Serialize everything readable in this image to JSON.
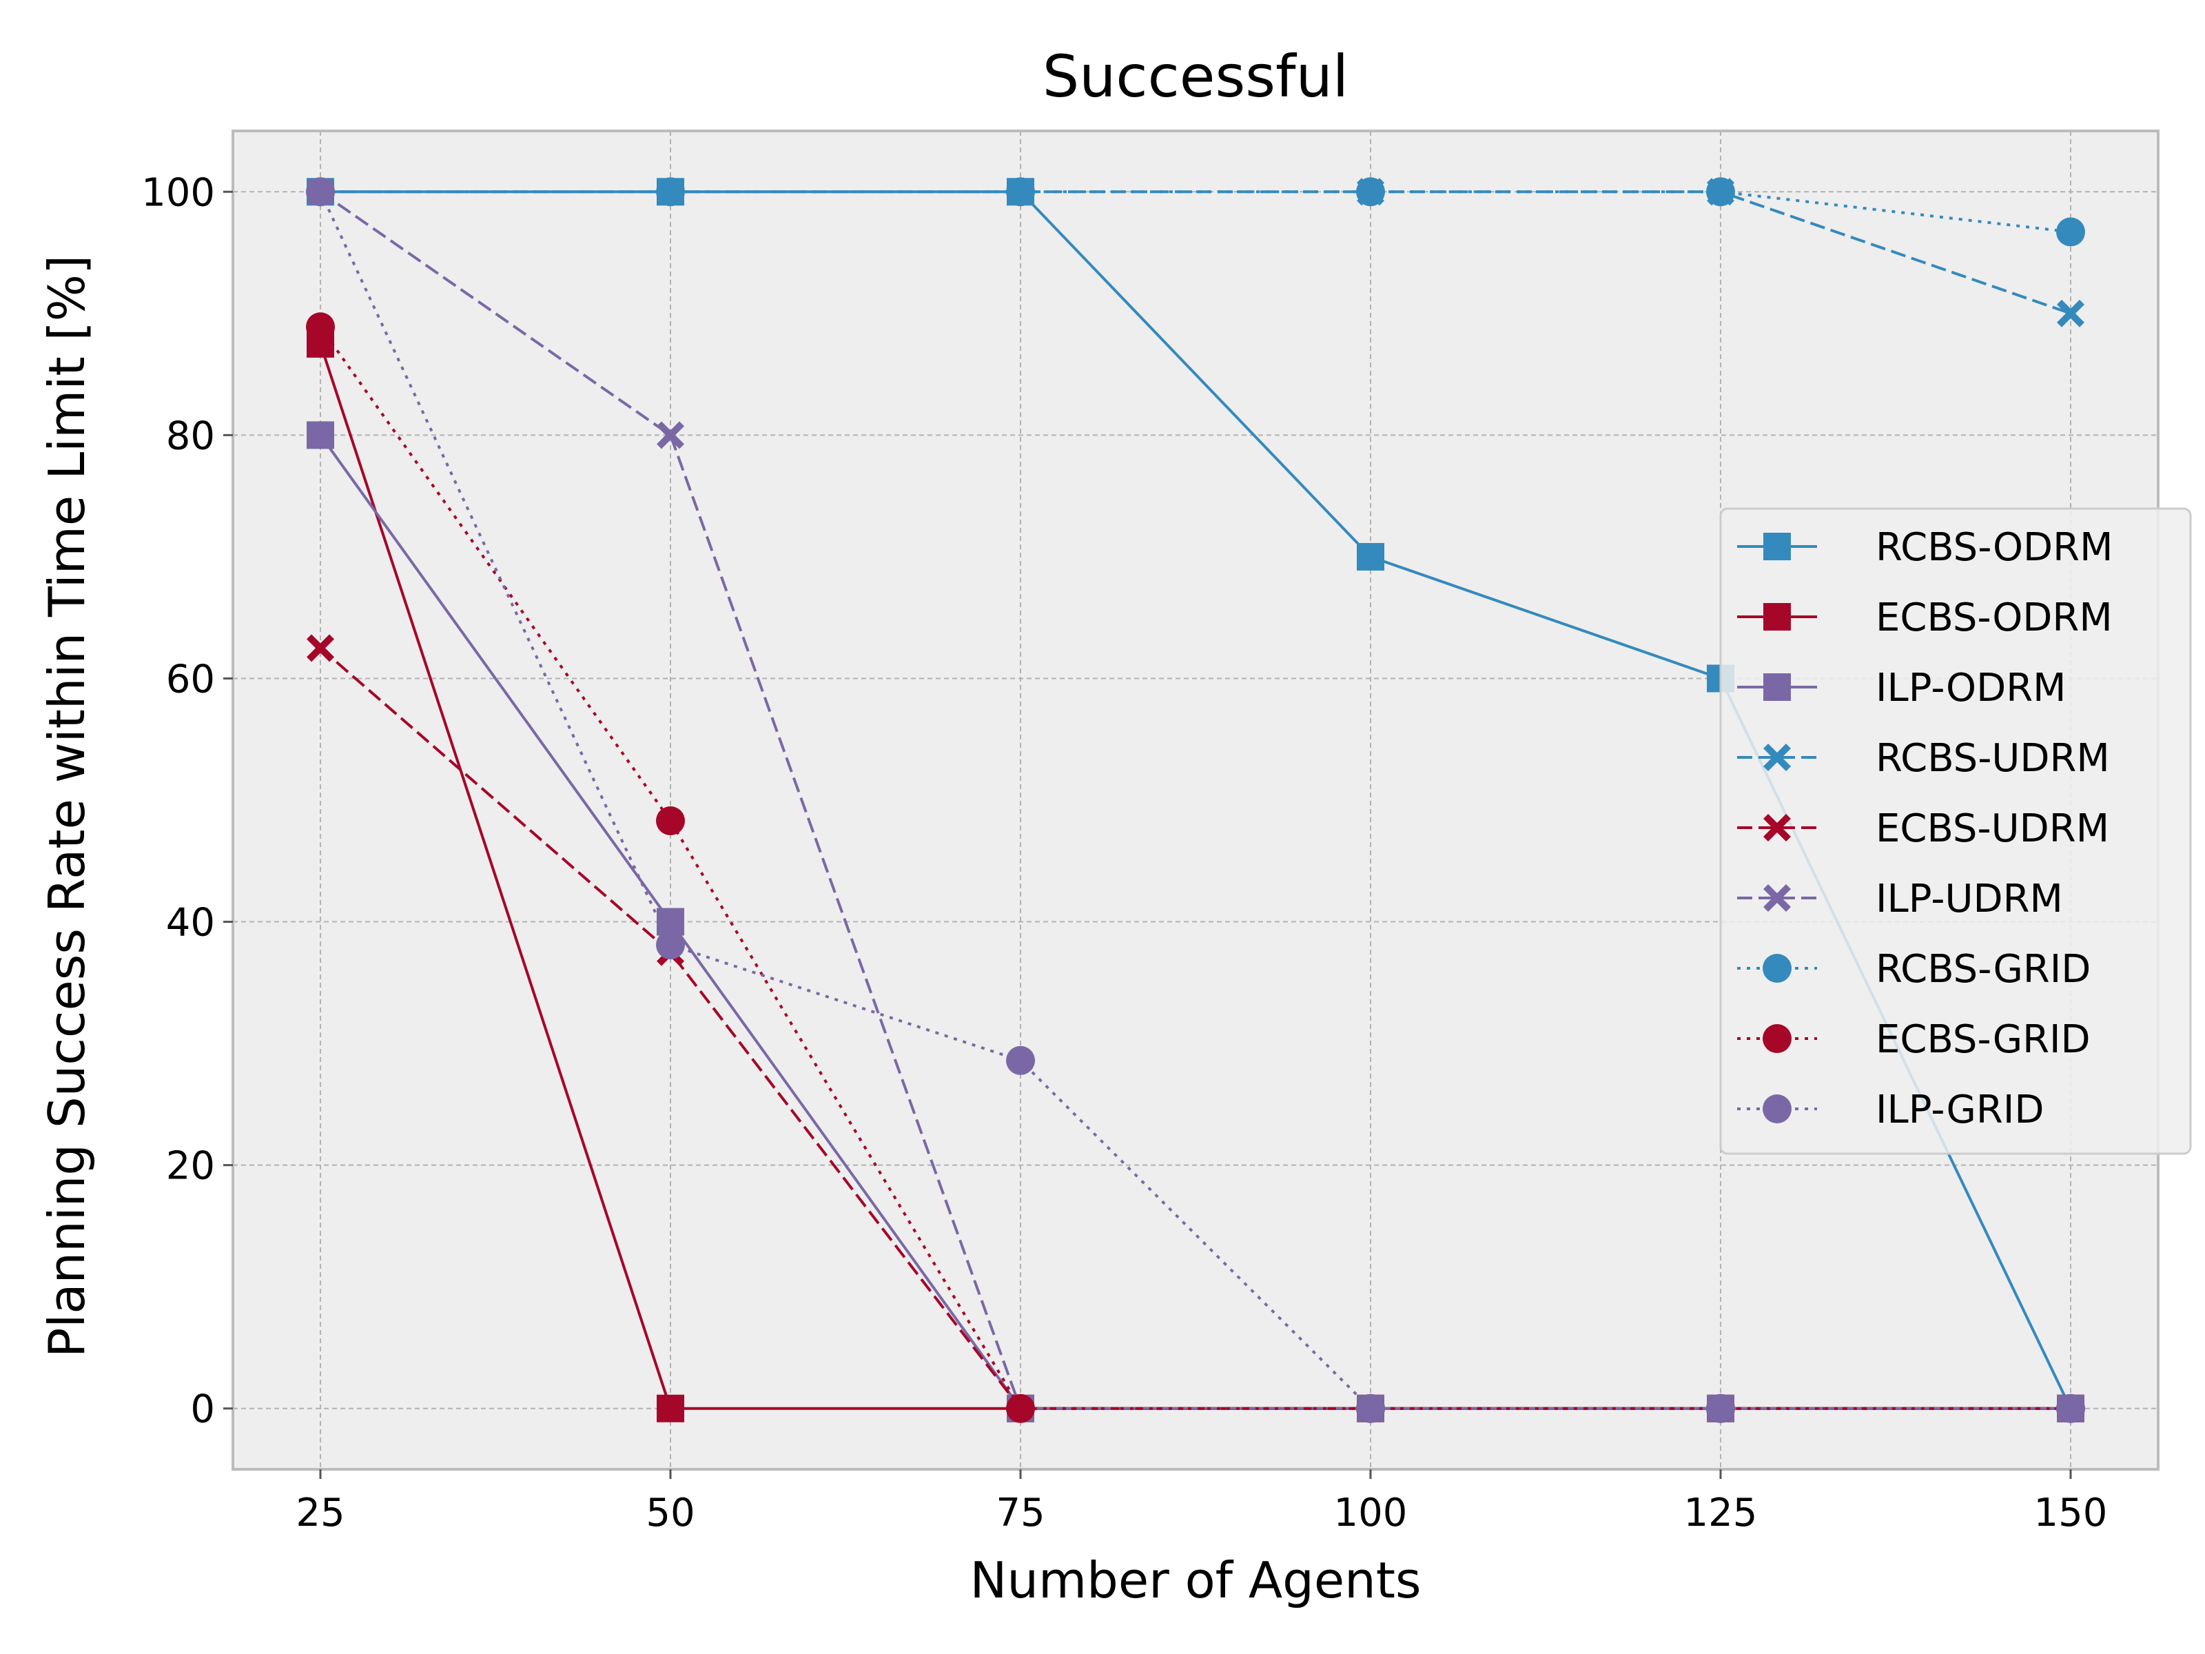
{
  "chart_data": {
    "type": "line",
    "title": "Successful",
    "xlabel": "Number of Agents",
    "ylabel": "Planning Success Rate within Time Limit [%]",
    "x": [
      25,
      50,
      75,
      100,
      125,
      150
    ],
    "xlim": [
      18.75,
      156.25
    ],
    "ylim": [
      -5,
      105
    ],
    "xticks": [
      25,
      50,
      75,
      100,
      125,
      150
    ],
    "yticks": [
      0,
      20,
      40,
      60,
      80,
      100
    ],
    "grid": true,
    "legend_position": "center-right",
    "background": "#EEEEEE",
    "series": [
      {
        "name": "RCBS-ODRM",
        "color": "#348ABD",
        "linestyle": "solid",
        "marker": "square",
        "values": [
          100,
          100,
          100,
          70,
          60,
          0
        ]
      },
      {
        "name": "ECBS-ODRM",
        "color": "#A60628",
        "linestyle": "solid",
        "marker": "square",
        "values": [
          87.5,
          0,
          0,
          0,
          0,
          0
        ]
      },
      {
        "name": "ILP-ODRM",
        "color": "#7A68A6",
        "linestyle": "solid",
        "marker": "square",
        "values": [
          80,
          40,
          0,
          0,
          0,
          0
        ]
      },
      {
        "name": "RCBS-UDRM",
        "color": "#348ABD",
        "linestyle": "dashed",
        "marker": "x-filled",
        "values": [
          100,
          100,
          100,
          100,
          100,
          90
        ]
      },
      {
        "name": "ECBS-UDRM",
        "color": "#A60628",
        "linestyle": "dashed",
        "marker": "x-filled",
        "values": [
          62.5,
          37.5,
          0,
          0,
          0,
          0
        ]
      },
      {
        "name": "ILP-UDRM",
        "color": "#7A68A6",
        "linestyle": "dashed",
        "marker": "x-filled",
        "values": [
          100,
          80,
          0,
          0,
          0,
          0
        ]
      },
      {
        "name": "RCBS-GRID",
        "color": "#348ABD",
        "linestyle": "dotted",
        "marker": "circle",
        "values": [
          100,
          100,
          100,
          100,
          100,
          96.7
        ]
      },
      {
        "name": "ECBS-GRID",
        "color": "#A60628",
        "linestyle": "dotted",
        "marker": "circle",
        "values": [
          88.9,
          48.3,
          0,
          0,
          0,
          0
        ]
      },
      {
        "name": "ILP-GRID",
        "color": "#7A68A6",
        "linestyle": "dotted",
        "marker": "circle",
        "values": [
          100,
          38.1,
          28.6,
          0,
          0,
          0
        ]
      }
    ]
  }
}
